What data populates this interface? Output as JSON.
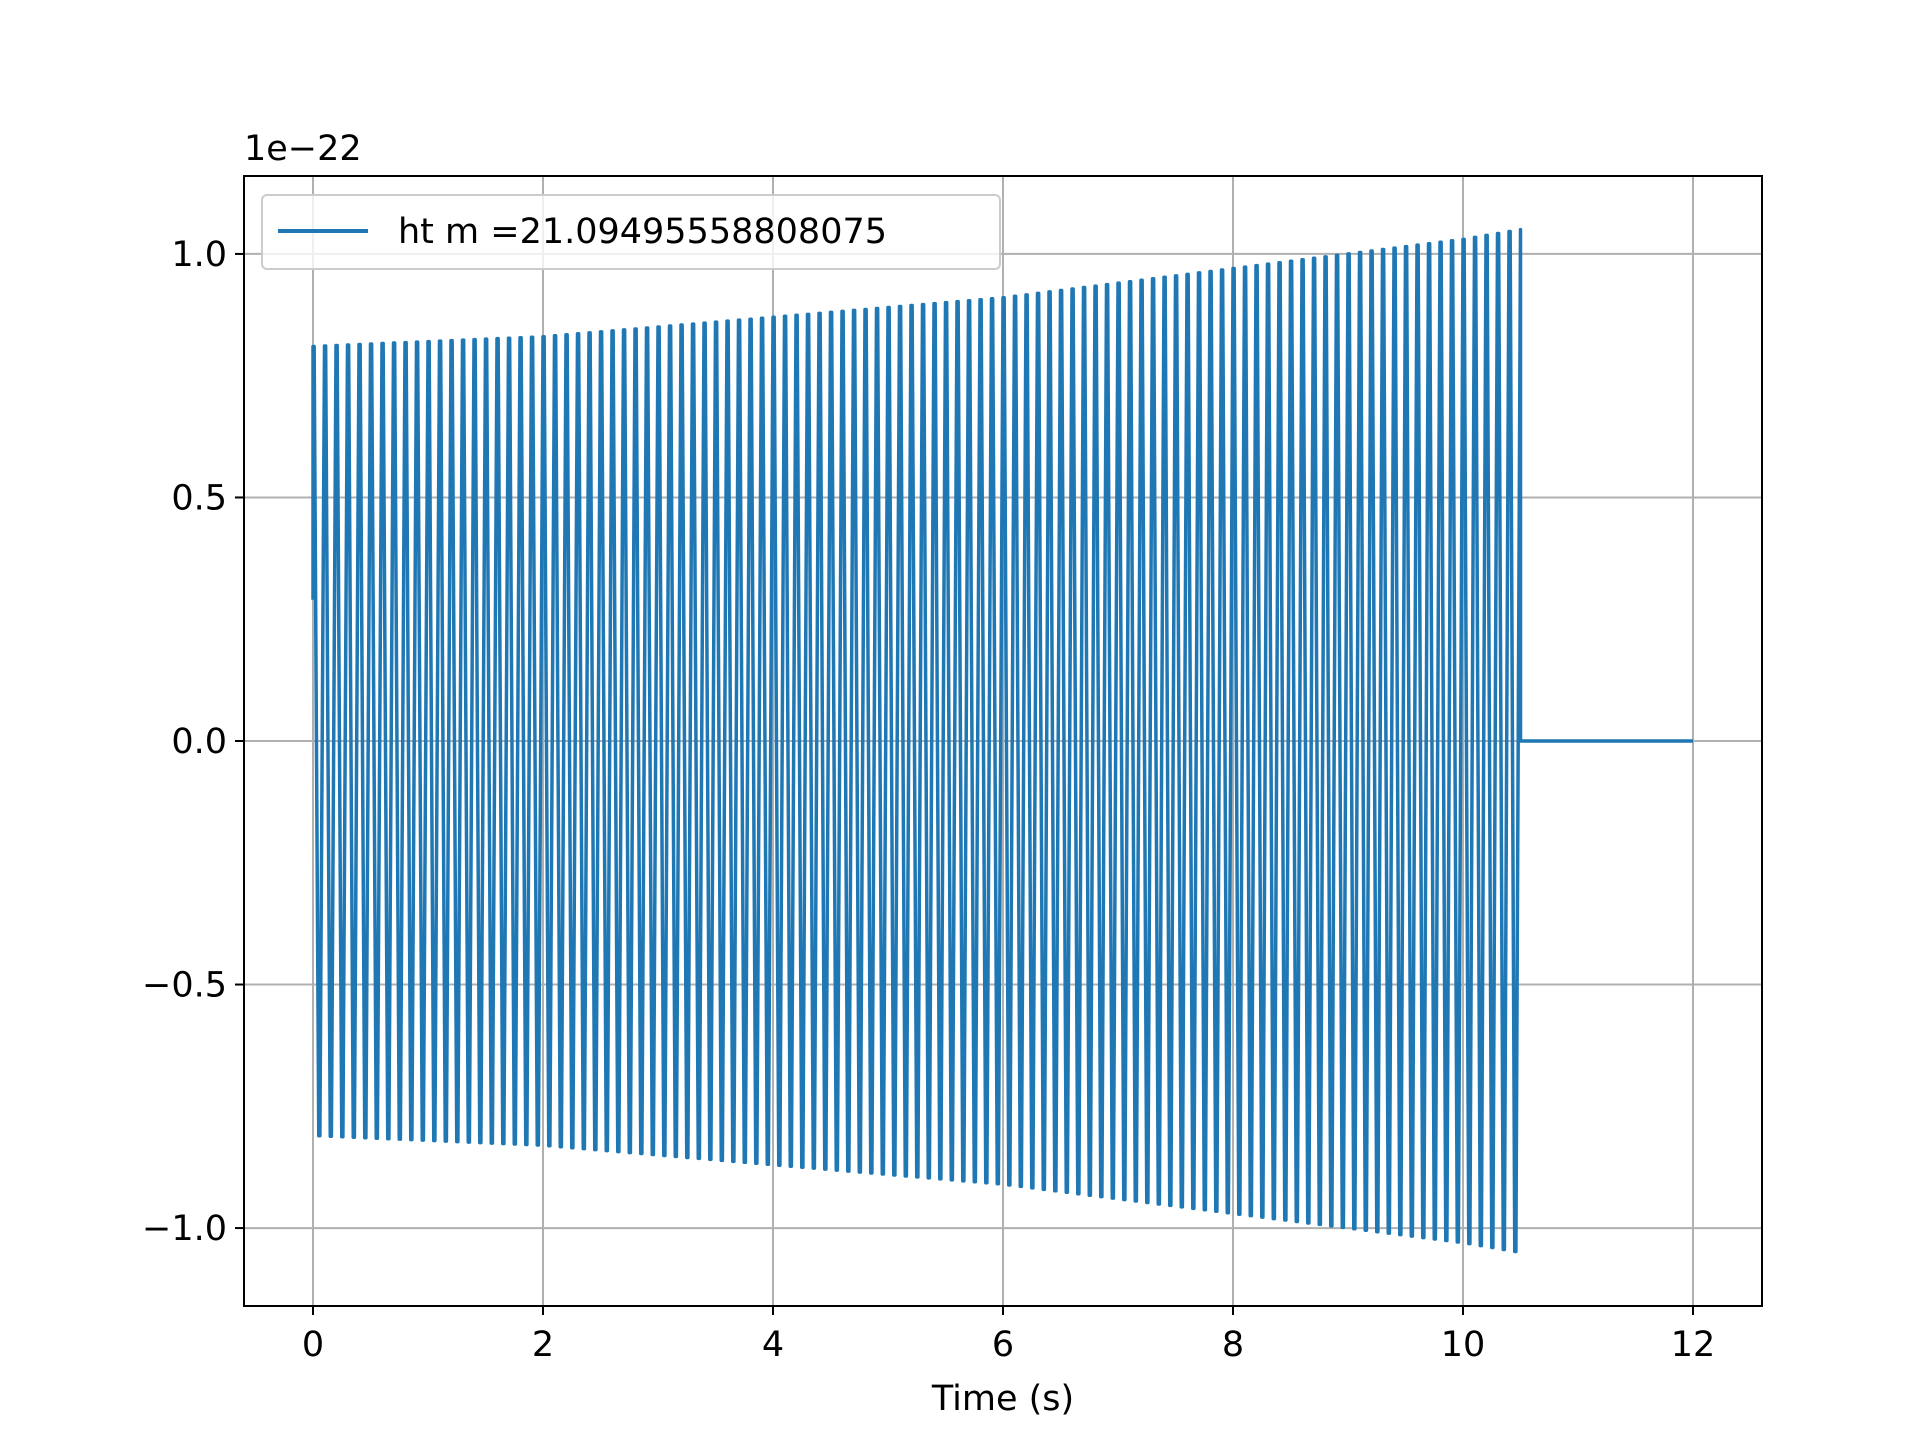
{
  "chart_data": {
    "type": "line",
    "title": "",
    "xlabel": "Time (s)",
    "ylabel": "",
    "y_offset_label": "1e−22",
    "xlim": [
      -0.6,
      12.6
    ],
    "ylim": [
      -1.16,
      1.16
    ],
    "x_ticks": [
      0,
      2,
      4,
      6,
      8,
      10,
      12
    ],
    "x_tick_labels": [
      "0",
      "2",
      "4",
      "6",
      "8",
      "10",
      "12"
    ],
    "y_ticks": [
      -1.0,
      -0.5,
      0.0,
      0.5,
      1.0
    ],
    "y_tick_labels": [
      "−1.0",
      "−0.5",
      "0.0",
      "0.5",
      "1.0"
    ],
    "grid": true,
    "legend_position": "upper-left",
    "series": [
      {
        "name": "ht m =21.09495558808075",
        "color": "#1f77b4",
        "x_start": 0,
        "x_end": 12,
        "signal_end": 10.5,
        "oscillation_cycles": 105,
        "initial_value": 0.29,
        "envelope": [
          {
            "x": 0,
            "amplitude": 0.81
          },
          {
            "x": 2,
            "amplitude": 0.83
          },
          {
            "x": 4,
            "amplitude": 0.87
          },
          {
            "x": 6,
            "amplitude": 0.91
          },
          {
            "x": 8,
            "amplitude": 0.97
          },
          {
            "x": 10,
            "amplitude": 1.03
          },
          {
            "x": 10.5,
            "amplitude": 1.05
          }
        ],
        "tail_value": 0.0
      }
    ]
  }
}
